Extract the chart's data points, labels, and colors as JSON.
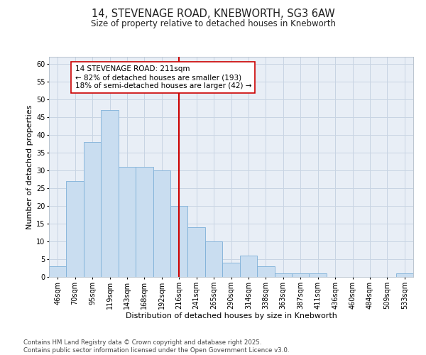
{
  "title": "14, STEVENAGE ROAD, KNEBWORTH, SG3 6AW",
  "subtitle": "Size of property relative to detached houses in Knebworth",
  "xlabel": "Distribution of detached houses by size in Knebworth",
  "ylabel": "Number of detached properties",
  "categories": [
    "46sqm",
    "70sqm",
    "95sqm",
    "119sqm",
    "143sqm",
    "168sqm",
    "192sqm",
    "216sqm",
    "241sqm",
    "265sqm",
    "290sqm",
    "314sqm",
    "338sqm",
    "363sqm",
    "387sqm",
    "411sqm",
    "436sqm",
    "460sqm",
    "484sqm",
    "509sqm",
    "533sqm"
  ],
  "values": [
    3,
    27,
    38,
    47,
    31,
    31,
    30,
    20,
    14,
    10,
    4,
    6,
    3,
    1,
    1,
    1,
    0,
    0,
    0,
    0,
    1
  ],
  "bar_color": "#c9ddf0",
  "bar_edge_color": "#7eb0d8",
  "grid_color": "#c8d4e3",
  "bg_color": "#e8eef6",
  "vline_x": 7,
  "vline_color": "#cc0000",
  "annotation_text": "14 STEVENAGE ROAD: 211sqm\n← 82% of detached houses are smaller (193)\n18% of semi-detached houses are larger (42) →",
  "annotation_box_color": "#cc0000",
  "ylim": [
    0,
    62
  ],
  "yticks": [
    0,
    5,
    10,
    15,
    20,
    25,
    30,
    35,
    40,
    45,
    50,
    55,
    60
  ],
  "footer_line1": "Contains HM Land Registry data © Crown copyright and database right 2025.",
  "footer_line2": "Contains public sector information licensed under the Open Government Licence v3.0.",
  "title_fontsize": 10.5,
  "subtitle_fontsize": 8.5,
  "axis_label_fontsize": 8,
  "tick_fontsize": 7,
  "annotation_fontsize": 7.5,
  "footer_fontsize": 6.2
}
